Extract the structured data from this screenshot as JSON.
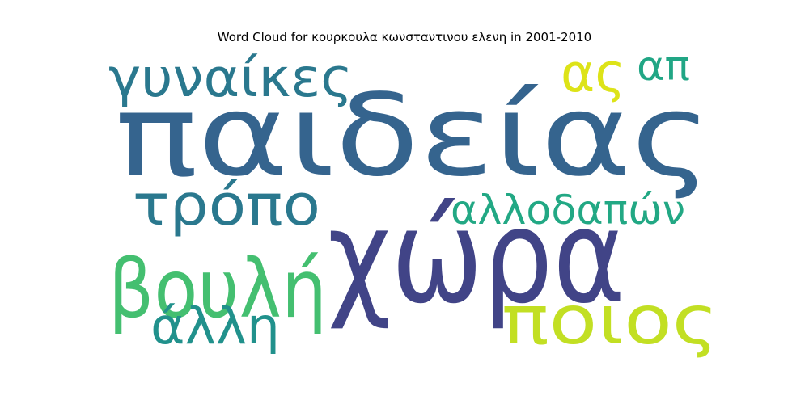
{
  "chart_data": {
    "type": "wordcloud",
    "title": "Word Cloud for κουρκουλα κωνσταντινου ελενη in 2001-2010",
    "words": [
      {
        "text": "παιδείας",
        "color": "#35648e"
      },
      {
        "text": "χώρα",
        "color": "#414487"
      },
      {
        "text": "γυναίκες",
        "color": "#2a788e"
      },
      {
        "text": "τρόπο",
        "color": "#2a788e"
      },
      {
        "text": "βουλή",
        "color": "#44bf70"
      },
      {
        "text": "ποιος",
        "color": "#c2df23"
      },
      {
        "text": "αλλοδαπών",
        "color": "#22a884"
      },
      {
        "text": "άλλη",
        "color": "#21918c"
      },
      {
        "text": "ας",
        "color": "#dde318"
      },
      {
        "text": "απ",
        "color": "#21a685"
      }
    ]
  }
}
